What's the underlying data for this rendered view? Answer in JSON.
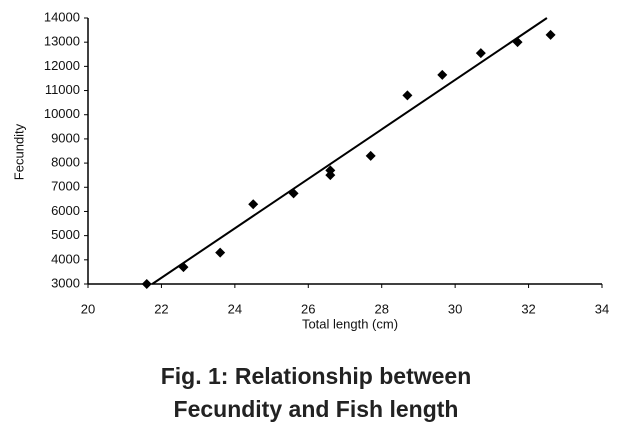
{
  "chart_data": {
    "type": "scatter",
    "x_label": "Total length (cm)",
    "y_label": "Fecundity",
    "caption": [
      "Fig. 1: Relationship between",
      "Fecundity and Fish length"
    ],
    "x": [
      21.6,
      22.6,
      23.6,
      24.5,
      25.6,
      26.6,
      26.6,
      27.7,
      28.7,
      29.65,
      30.7,
      31.7,
      32.6
    ],
    "values": [
      3000,
      3700,
      4300,
      6300,
      6750,
      7700,
      7500,
      8300,
      10800,
      11650,
      12550,
      13000,
      13300
    ],
    "color": "#000000",
    "trend": {
      "x": [
        21.75,
        32.5
      ],
      "y": [
        3000,
        14000
      ],
      "color": "#000000"
    },
    "xlim": [
      20,
      34
    ],
    "xticks": [
      20,
      22,
      24,
      26,
      28,
      30,
      32,
      34
    ],
    "ylim": [
      3000,
      14000
    ],
    "yticks": [
      3000,
      4000,
      5000,
      6000,
      7000,
      8000,
      9000,
      10000,
      11000,
      12000,
      13000,
      14000
    ],
    "grid": false
  }
}
